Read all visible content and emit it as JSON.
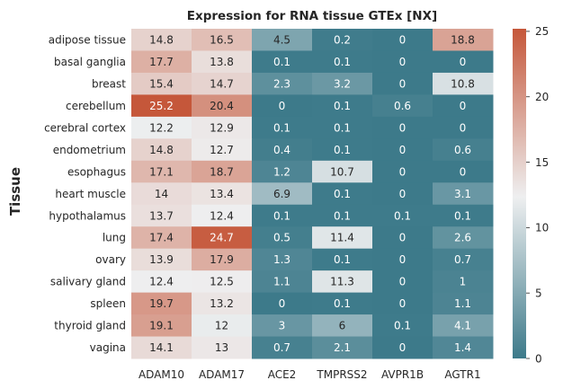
{
  "chart_data": {
    "type": "heatmap",
    "title": "Expression for RNA tissue GTEx [NX]",
    "xlabel": "",
    "ylabel": "Tissue",
    "x_categories": [
      "ADAM10",
      "ADAM17",
      "ACE2",
      "TMPRSS2",
      "AVPR1B",
      "AGTR1"
    ],
    "y_categories": [
      "adipose tissue",
      "basal ganglia",
      "breast",
      "cerebellum",
      "cerebral cortex",
      "endometrium",
      "esophagus",
      "heart muscle",
      "hypothalamus",
      "lung",
      "ovary",
      "salivary gland",
      "spleen",
      "thyroid gland",
      "vagina"
    ],
    "values": [
      [
        14.8,
        16.5,
        4.5,
        0.2,
        0,
        18.8
      ],
      [
        17.7,
        13.8,
        0.1,
        0.1,
        0,
        0
      ],
      [
        15.4,
        14.7,
        2.3,
        3.2,
        0,
        10.8
      ],
      [
        25.2,
        20.4,
        0,
        0.1,
        0.6,
        0
      ],
      [
        12.2,
        12.9,
        0.1,
        0.1,
        0,
        0
      ],
      [
        14.8,
        12.7,
        0.4,
        0.1,
        0,
        0.6
      ],
      [
        17.1,
        18.7,
        1.2,
        10.7,
        0,
        0
      ],
      [
        14,
        13.4,
        6.9,
        0.1,
        0,
        3.1
      ],
      [
        13.7,
        12.4,
        0.1,
        0.1,
        0.1,
        0.1
      ],
      [
        17.4,
        24.7,
        0.5,
        11.4,
        0,
        2.6
      ],
      [
        13.9,
        17.9,
        1.3,
        0.1,
        0,
        0.7
      ],
      [
        12.4,
        12.5,
        1.1,
        11.3,
        0,
        1
      ],
      [
        19.7,
        13.2,
        0,
        0.1,
        0,
        1.1
      ],
      [
        19.1,
        12,
        3,
        6,
        0.1,
        4.1
      ],
      [
        14.1,
        13,
        0.7,
        2.1,
        0,
        1.4
      ]
    ],
    "value_range": [
      0,
      25.2
    ],
    "colorbar": {
      "ticks": [
        0,
        5,
        10,
        15,
        20,
        25
      ]
    },
    "colormap": {
      "low": "#3d7a8a",
      "mid": "#eeeff0",
      "high": "#c5573a"
    },
    "annotations": "values shown in each cell",
    "grid": false
  }
}
